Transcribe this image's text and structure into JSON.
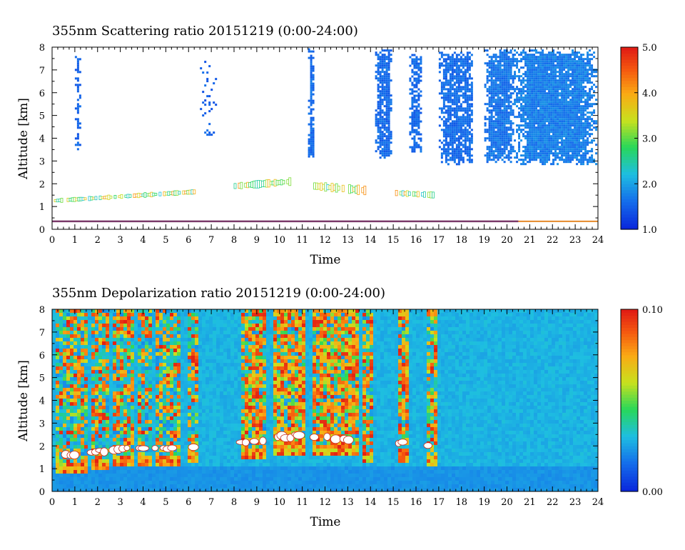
{
  "chart_data": [
    {
      "type": "heatmap",
      "title": "355nm Scattering ratio  20151219 (0:00-24:00)",
      "xlabel": "Time",
      "ylabel": "Altitude [km]",
      "xlim": [
        0,
        24
      ],
      "ylim": [
        0,
        8
      ],
      "x_ticks": [
        "0",
        "1",
        "2",
        "3",
        "4",
        "5",
        "6",
        "7",
        "8",
        "9",
        "10",
        "11",
        "12",
        "13",
        "14",
        "15",
        "16",
        "17",
        "18",
        "19",
        "20",
        "21",
        "22",
        "23",
        "24"
      ],
      "y_ticks": [
        "0",
        "1",
        "2",
        "3",
        "4",
        "5",
        "6",
        "7",
        "8"
      ],
      "colorbar": {
        "min": 1.0,
        "max": 5.0,
        "ticks": [
          "1.0",
          "2.0",
          "3.0",
          "4.0",
          "5.0"
        ]
      },
      "regions": [
        {
          "t0": 1.0,
          "t1": 1.2,
          "z0": 3.3,
          "z1": 7.8,
          "level": 0.08,
          "fill": 0.6
        },
        {
          "t0": 6.5,
          "t1": 7.2,
          "z0": 4.0,
          "z1": 7.4,
          "level": 0.08,
          "fill": 0.12
        },
        {
          "t0": 11.25,
          "t1": 11.5,
          "z0": 3.1,
          "z1": 7.95,
          "level": 0.1,
          "fill": 0.92
        },
        {
          "t0": 14.2,
          "t1": 14.9,
          "z0": 3.1,
          "z1": 7.9,
          "level": 0.1,
          "fill": 0.9
        },
        {
          "t0": 15.7,
          "t1": 16.2,
          "z0": 3.4,
          "z1": 7.7,
          "level": 0.1,
          "fill": 0.75
        },
        {
          "t0": 17.0,
          "t1": 18.5,
          "z0": 2.9,
          "z1": 7.8,
          "level": 0.1,
          "fill": 0.85
        },
        {
          "t0": 19.0,
          "t1": 20.3,
          "z0": 3.0,
          "z1": 7.9,
          "level": 0.12,
          "fill": 0.92
        },
        {
          "t0": 20.3,
          "t1": 23.9,
          "z0": 2.9,
          "z1": 7.9,
          "level": 0.14,
          "fill": 0.97
        }
      ],
      "layers": [
        {
          "t0": 0.0,
          "t1": 6.3,
          "z_start": 1.25,
          "z_end": 1.65,
          "thickness": 0.15
        },
        {
          "t0": 8.0,
          "t1": 10.5,
          "z_start": 1.9,
          "z_end": 2.1,
          "thickness": 0.25
        },
        {
          "t0": 11.5,
          "t1": 13.8,
          "z_start": 1.9,
          "z_end": 1.7,
          "thickness": 0.3
        },
        {
          "t0": 15.0,
          "t1": 16.8,
          "z_start": 1.6,
          "z_end": 1.5,
          "thickness": 0.2
        }
      ],
      "surface_line_km": 0.35
    },
    {
      "type": "heatmap",
      "title": "355nm Depolarization ratio  20151219 (0:00-24:00)",
      "xlabel": "Time",
      "ylabel": "Altitude [km]",
      "xlim": [
        0,
        24
      ],
      "ylim": [
        0,
        8
      ],
      "x_ticks": [
        "0",
        "1",
        "2",
        "3",
        "4",
        "5",
        "6",
        "7",
        "8",
        "9",
        "10",
        "11",
        "12",
        "13",
        "14",
        "15",
        "16",
        "17",
        "18",
        "19",
        "20",
        "21",
        "22",
        "23",
        "24"
      ],
      "y_ticks": [
        "0",
        "1",
        "2",
        "3",
        "4",
        "5",
        "6",
        "7",
        "8"
      ],
      "colorbar": {
        "min": 0.0,
        "max": 0.1,
        "ticks": [
          "0.00",
          "0.10"
        ]
      },
      "background_level": 0.28,
      "columns": [
        {
          "t0": 0.1,
          "t1": 1.5,
          "base_km": 1.4,
          "intensity": 0.55
        },
        {
          "t0": 1.6,
          "t1": 2.5,
          "base_km": 1.5,
          "intensity": 0.6
        },
        {
          "t0": 2.6,
          "t1": 3.6,
          "base_km": 1.6,
          "intensity": 0.6
        },
        {
          "t0": 3.7,
          "t1": 4.3,
          "base_km": 1.6,
          "intensity": 0.55
        },
        {
          "t0": 4.4,
          "t1": 5.6,
          "base_km": 1.7,
          "intensity": 0.55
        },
        {
          "t0": 5.9,
          "t1": 6.4,
          "base_km": 1.8,
          "intensity": 0.5
        },
        {
          "t0": 8.2,
          "t1": 9.4,
          "base_km": 2.0,
          "intensity": 0.85
        },
        {
          "t0": 9.6,
          "t1": 11.0,
          "base_km": 2.2,
          "intensity": 0.95
        },
        {
          "t0": 11.4,
          "t1": 13.4,
          "base_km": 2.1,
          "intensity": 0.95
        },
        {
          "t0": 13.6,
          "t1": 14.0,
          "base_km": 1.8,
          "intensity": 0.75
        },
        {
          "t0": 15.1,
          "t1": 15.6,
          "base_km": 1.9,
          "intensity": 0.8
        },
        {
          "t0": 16.4,
          "t1": 16.8,
          "base_km": 1.7,
          "intensity": 0.75
        }
      ],
      "surface_line_km": 0.1
    }
  ]
}
